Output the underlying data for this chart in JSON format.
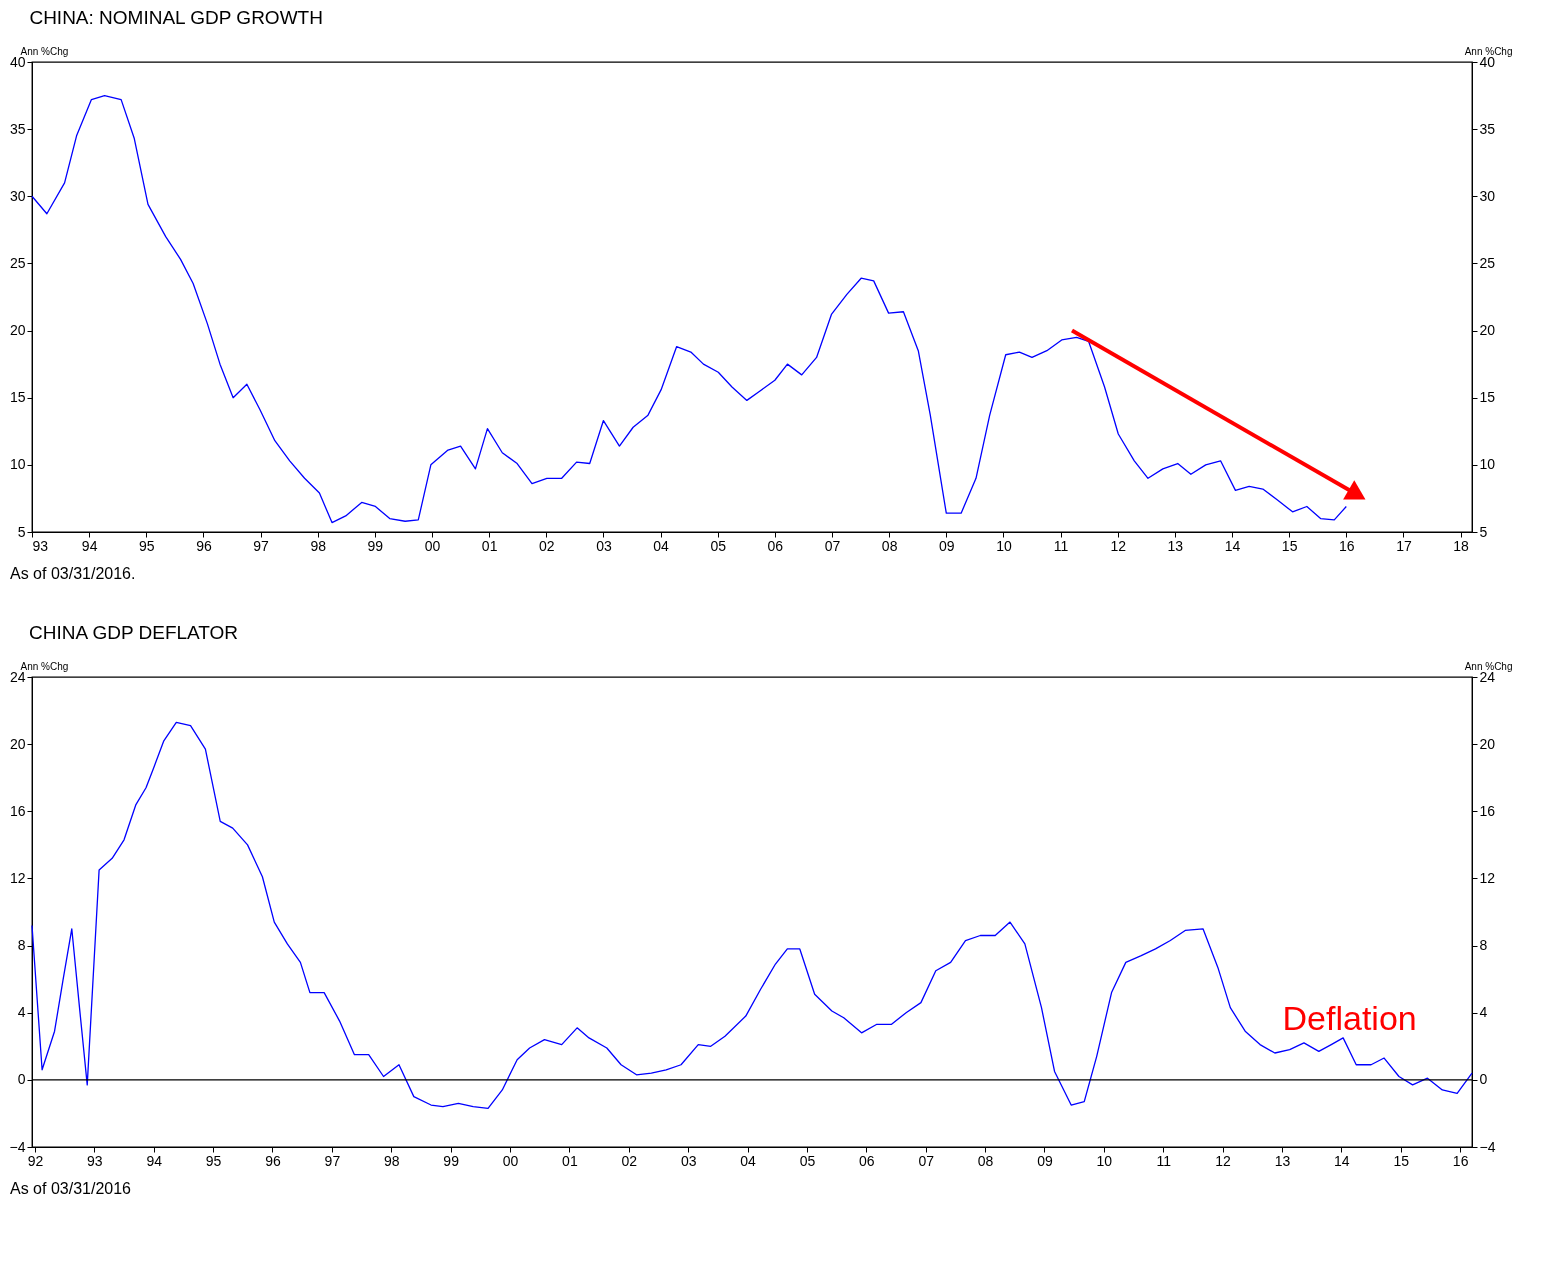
{
  "chart_data": [
    {
      "type": "line",
      "title": "CHINA: NOMINAL GDP GROWTH",
      "ylabel": "Ann %Chg",
      "y2label": "Ann %Chg",
      "xlim": [
        1993,
        2018.2
      ],
      "xticks": [
        {
          "value": 1993,
          "label": "93"
        },
        {
          "value": 1994,
          "label": "94"
        },
        {
          "value": 1995,
          "label": "95"
        },
        {
          "value": 1996,
          "label": "96"
        },
        {
          "value": 1997,
          "label": "97"
        },
        {
          "value": 1998,
          "label": "98"
        },
        {
          "value": 1999,
          "label": "99"
        },
        {
          "value": 2000,
          "label": "00"
        },
        {
          "value": 2001,
          "label": "01"
        },
        {
          "value": 2002,
          "label": "02"
        },
        {
          "value": 2003,
          "label": "03"
        },
        {
          "value": 2004,
          "label": "04"
        },
        {
          "value": 2005,
          "label": "05"
        },
        {
          "value": 2006,
          "label": "06"
        },
        {
          "value": 2007,
          "label": "07"
        },
        {
          "value": 2008,
          "label": "08"
        },
        {
          "value": 2009,
          "label": "09"
        },
        {
          "value": 2010,
          "label": "10"
        },
        {
          "value": 2011,
          "label": "11"
        },
        {
          "value": 2012,
          "label": "12"
        },
        {
          "value": 2013,
          "label": "13"
        },
        {
          "value": 2014,
          "label": "14"
        },
        {
          "value": 2015,
          "label": "15"
        },
        {
          "value": 2016,
          "label": "16"
        },
        {
          "value": 2017,
          "label": "17"
        },
        {
          "value": 2018,
          "label": "18"
        }
      ],
      "ylim": [
        5,
        40
      ],
      "yticks": [
        5,
        10,
        15,
        20,
        25,
        30,
        35,
        40
      ],
      "y2lim": [
        5,
        40
      ],
      "y2ticks": [
        5,
        10,
        15,
        20,
        25,
        30,
        35,
        40
      ],
      "grid": false,
      "series": [
        {
          "color": "#0000ff",
          "x": [
            1993.0,
            1993.26,
            1993.57,
            1993.78,
            1994.04,
            1994.27,
            1994.56,
            1994.79,
            1995.03,
            1995.34,
            1995.6,
            1995.82,
            1996.07,
            1996.29,
            1996.52,
            1996.76,
            1996.99,
            1997.25,
            1997.51,
            1997.77,
            1998.03,
            1998.25,
            1998.49,
            1998.77,
            1999.01,
            1999.26,
            1999.53,
            1999.76,
            1999.98,
            2000.28,
            2000.5,
            2000.76,
            2000.97,
            2001.23,
            2001.49,
            2001.75,
            2002.01,
            2002.27,
            2002.53,
            2002.76,
            2003.0,
            2003.28,
            2003.52,
            2003.78,
            2004.01,
            2004.28,
            2004.53,
            2004.75,
            2005.01,
            2005.25,
            2005.51,
            2005.74,
            2006.0,
            2006.22,
            2006.47,
            2006.73,
            2006.99,
            2007.26,
            2007.51,
            2007.73,
            2007.99,
            2008.25,
            2008.51,
            2008.72,
            2009.0,
            2009.26,
            2009.52,
            2009.76,
            2010.04,
            2010.28,
            2010.5,
            2010.76,
            2011.02,
            2011.28,
            2011.49,
            2011.77,
            2012.01,
            2012.29,
            2012.53,
            2012.79,
            2013.05,
            2013.28,
            2013.54,
            2013.8,
            2014.06,
            2014.3,
            2014.54,
            2014.79,
            2015.06,
            2015.31,
            2015.55,
            2015.79,
            2016.0
          ],
          "values": [
            30,
            28.7,
            31,
            34.5,
            37.2,
            37.5,
            37.2,
            34.3,
            29.4,
            27,
            25.3,
            23.5,
            20.5,
            17.5,
            15,
            16,
            14.1,
            11.8,
            10.3,
            9,
            7.9,
            5.7,
            6.2,
            7.2,
            6.9,
            6,
            5.8,
            5.9,
            10,
            11.1,
            11.4,
            9.7,
            12.7,
            10.9,
            10.1,
            8.6,
            9,
            9,
            10.2,
            10.1,
            13.3,
            11.4,
            12.8,
            13.7,
            15.6,
            18.8,
            18.4,
            17.5,
            16.9,
            15.8,
            14.8,
            15.5,
            16.3,
            17.5,
            16.7,
            18,
            21.2,
            22.7,
            23.9,
            23.7,
            21.3,
            21.4,
            18.5,
            13.7,
            6.4,
            6.4,
            9,
            13.7,
            18.2,
            18.4,
            18,
            18.5,
            19.3,
            19.5,
            19.2,
            15.8,
            12.3,
            10.3,
            9,
            9.7,
            10.1,
            9.3,
            10,
            10.3,
            8.1,
            8.4,
            8.2,
            7.4,
            6.5,
            6.9,
            6,
            5.9,
            6.9
          ]
        },
        {
          "type": "line",
          "color": "#ff0000",
          "x": [
            2011.2,
            2016.14
          ],
          "values": [
            20.0,
            7.9
          ]
        }
      ],
      "annotations": [
        "As of  03/31/2016."
      ]
    },
    {
      "type": "line",
      "title": "CHINA GDP DEFLATOR",
      "ylabel": "Ann %Chg",
      "y2label": "Ann %Chg",
      "xlim": [
        1991.95,
        2016.2
      ],
      "xticks": [
        {
          "value": 1992,
          "label": "92"
        },
        {
          "value": 1993,
          "label": "93"
        },
        {
          "value": 1994,
          "label": "94"
        },
        {
          "value": 1995,
          "label": "95"
        },
        {
          "value": 1996,
          "label": "96"
        },
        {
          "value": 1997,
          "label": "97"
        },
        {
          "value": 1998,
          "label": "98"
        },
        {
          "value": 1999,
          "label": "99"
        },
        {
          "value": 2000,
          "label": "00"
        },
        {
          "value": 2001,
          "label": "01"
        },
        {
          "value": 2002,
          "label": "02"
        },
        {
          "value": 2003,
          "label": "03"
        },
        {
          "value": 2004,
          "label": "04"
        },
        {
          "value": 2005,
          "label": "05"
        },
        {
          "value": 2006,
          "label": "06"
        },
        {
          "value": 2007,
          "label": "07"
        },
        {
          "value": 2008,
          "label": "08"
        },
        {
          "value": 2009,
          "label": "09"
        },
        {
          "value": 2010,
          "label": "10"
        },
        {
          "value": 2011,
          "label": "11"
        },
        {
          "value": 2012,
          "label": "12"
        },
        {
          "value": 2013,
          "label": "13"
        },
        {
          "value": 2014,
          "label": "14"
        },
        {
          "value": 2015,
          "label": "15"
        },
        {
          "value": 2016,
          "label": "16"
        }
      ],
      "ylim": [
        -4,
        24
      ],
      "yticks": [
        -4,
        0,
        4,
        8,
        12,
        16,
        20,
        24
      ],
      "y2lim": [
        -4,
        24
      ],
      "y2ticks": [
        -4,
        0,
        4,
        8,
        12,
        16,
        20,
        24
      ],
      "grid": false,
      "ref_lines": [
        {
          "axis": "y",
          "value": 0,
          "color": "#000000"
        }
      ],
      "series": [
        {
          "color": "#0000ff",
          "x": [
            1991.95,
            1992.12,
            1992.33,
            1992.47,
            1992.62,
            1992.75,
            1992.88,
            1993.08,
            1993.3,
            1993.5,
            1993.7,
            1993.87,
            1994.0,
            1994.17,
            1994.38,
            1994.62,
            1994.87,
            1995.12,
            1995.33,
            1995.58,
            1995.83,
            1996.03,
            1996.25,
            1996.47,
            1996.63,
            1996.87,
            1997.13,
            1997.38,
            1997.62,
            1997.87,
            1998.13,
            1998.38,
            1998.67,
            1998.87,
            1999.13,
            1999.38,
            1999.63,
            1999.87,
            2000.12,
            2000.33,
            2000.58,
            2000.87,
            2001.13,
            2001.33,
            2001.63,
            2001.87,
            2002.13,
            2002.38,
            2002.63,
            2002.88,
            2003.17,
            2003.38,
            2003.62,
            2003.97,
            2004.22,
            2004.47,
            2004.67,
            2004.88,
            2005.13,
            2005.42,
            2005.62,
            2005.92,
            2006.17,
            2006.42,
            2006.67,
            2006.92,
            2007.17,
            2007.42,
            2007.67,
            2007.92,
            2008.17,
            2008.42,
            2008.67,
            2008.95,
            2009.17,
            2009.45,
            2009.67,
            2009.88,
            2010.13,
            2010.37,
            2010.63,
            2010.87,
            2011.12,
            2011.37,
            2011.67,
            2011.92,
            2012.13,
            2012.38,
            2012.63,
            2012.88,
            2013.13,
            2013.37,
            2013.62,
            2013.83,
            2014.03,
            2014.25,
            2014.5,
            2014.72,
            2014.97,
            2015.2,
            2015.45,
            2015.7,
            2015.95,
            2016.2
          ],
          "values": [
            9.2,
            0.6,
            2.9,
            5.9,
            9,
            4.3,
            -0.3,
            12.5,
            13.2,
            14.3,
            16.4,
            17.4,
            18.6,
            20.2,
            21.3,
            21.1,
            19.7,
            15.4,
            15,
            14,
            12.1,
            9.4,
            8.1,
            7,
            5.2,
            5.2,
            3.5,
            1.5,
            1.5,
            0.2,
            0.9,
            -1,
            -1.5,
            -1.6,
            -1.4,
            -1.6,
            -1.7,
            -0.6,
            1.2,
            1.9,
            2.4,
            2.1,
            3.1,
            2.5,
            1.9,
            0.9,
            0.3,
            0.4,
            0.6,
            0.9,
            2.1,
            2,
            2.6,
            3.8,
            5.4,
            6.9,
            7.8,
            7.8,
            5.1,
            4.1,
            3.7,
            2.8,
            3.3,
            3.3,
            4,
            4.6,
            6.5,
            7,
            8.3,
            8.6,
            8.6,
            9.4,
            8.1,
            4.3,
            0.5,
            -1.5,
            -1.3,
            1.4,
            5.2,
            7,
            7.4,
            7.8,
            8.3,
            8.9,
            9,
            6.7,
            4.3,
            2.9,
            2.1,
            1.6,
            1.8,
            2.2,
            1.7,
            2.1,
            2.5,
            0.9,
            0.9,
            1.3,
            0.2,
            -0.3,
            0.1,
            -0.6,
            -0.8,
            0.4
          ]
        }
      ],
      "annotations": [
        "As of 03/31/2016",
        "Deflation"
      ]
    }
  ]
}
